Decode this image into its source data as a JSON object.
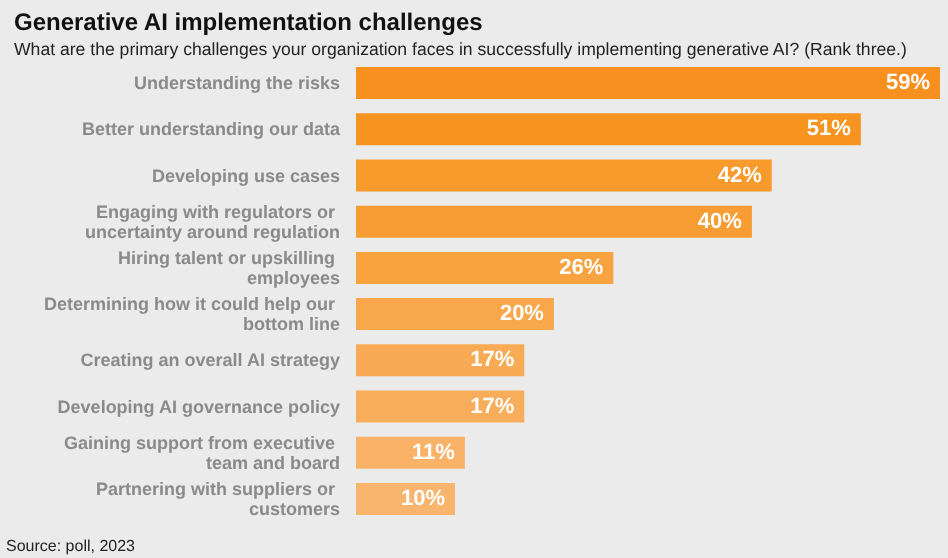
{
  "chart_data": {
    "type": "bar",
    "orientation": "horizontal",
    "title": "Generative AI implementation challenges",
    "subtitle": "What are the primary challenges your organization faces in successfully implementing generative AI? (Rank three.)",
    "categories": [
      "Understanding the risks",
      "Better understanding our data",
      "Developing use cases",
      "Engaging with regulators or uncertainty around regulation",
      "Hiring talent or upskilling employees",
      "Determining how it could help our bottom line",
      "Creating an overall AI strategy",
      "Developing AI governance policy",
      "Gaining support from executive team and board",
      "Partnering with suppliers or customers"
    ],
    "values": [
      59,
      51,
      42,
      40,
      26,
      20,
      17,
      17,
      11,
      10
    ],
    "value_labels": [
      "59%",
      "51%",
      "42%",
      "40%",
      "26%",
      "20%",
      "17%",
      "17%",
      "11%",
      "10%"
    ],
    "colors": [
      "#f7901e",
      "#f7941f",
      "#f89a2c",
      "#f89d33",
      "#f8a340",
      "#f8a74a",
      "#f8ab54",
      "#f8ad5a",
      "#f9b268",
      "#f9b46e"
    ],
    "annotations": [
      "Source: poll, 2023"
    ]
  }
}
